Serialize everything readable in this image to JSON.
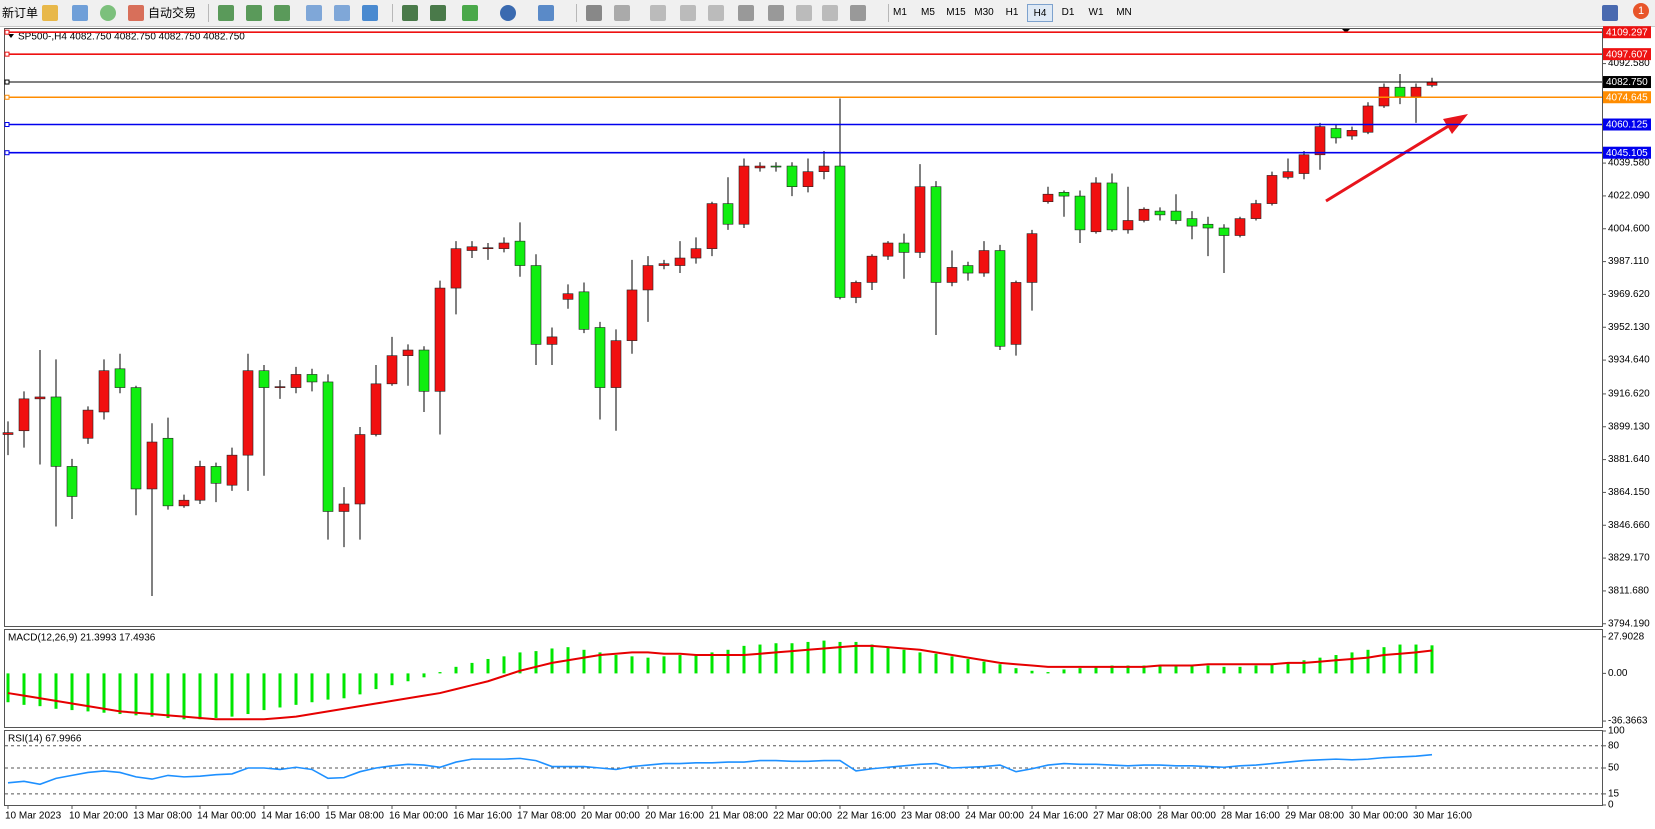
{
  "toolbar": {
    "buttons": [
      "新订单",
      "自动交易",
      "M1",
      "M5",
      "M15",
      "M30",
      "H1",
      "H4",
      "D1",
      "W1",
      "MN"
    ],
    "notification": "1"
  },
  "chart_data": [
    {
      "type": "candlestick",
      "title": "SP500-,H4  4082.750 4082.750 4082.750 4082.750",
      "categories": [
        "10 Mar 2023",
        null,
        null,
        null,
        "10 Mar 20:00",
        null,
        null,
        null,
        "13 Mar 08:00",
        null,
        null,
        null,
        "14 Mar 00:00",
        null,
        null,
        null,
        "14 Mar 16:00",
        null,
        null,
        null,
        "15 Mar 08:00",
        null,
        null,
        null,
        "16 Mar 00:00",
        null,
        null,
        null,
        "16 Mar 16:00",
        null,
        null,
        null,
        "17 Mar 08:00",
        null,
        null,
        null,
        "20 Mar 00:00",
        null,
        null,
        null,
        "20 Mar 16:00",
        null,
        null,
        null,
        "21 Mar 08:00",
        null,
        null,
        null,
        "22 Mar 00:00",
        null,
        null,
        null,
        "22 Mar 16:00",
        null,
        null,
        null,
        "23 Mar 08:00",
        null,
        null,
        null,
        "24 Mar 00:00",
        null,
        null,
        null,
        "24 Mar 16:00",
        null,
        null,
        null,
        "27 Mar 08:00",
        null,
        null,
        null,
        "28 Mar 00:00",
        null,
        null,
        null,
        "28 Mar 16:00",
        null,
        null,
        null,
        "29 Mar 08:00",
        null,
        null,
        null,
        "30 Mar 00:00",
        null,
        null,
        null,
        "30 Mar 16:00",
        null
      ],
      "open": [
        3895,
        3897,
        3914,
        3915,
        3878,
        3893,
        3907,
        3930,
        3920,
        3866,
        3893,
        3857,
        3860,
        3878,
        3868,
        3884,
        3929,
        3920,
        3920,
        3927,
        3923,
        3854,
        3858,
        3895,
        3922,
        3937,
        3940,
        3918,
        3973,
        3993,
        3994,
        3994,
        3998,
        3985,
        3943,
        3967,
        3971,
        3952,
        3920,
        3945,
        3972,
        3985,
        3985,
        3989,
        3994,
        4018,
        4007,
        4037,
        4038,
        4038,
        4027,
        4035,
        4038,
        3968,
        3976,
        3990,
        3997,
        3992,
        4027,
        3976,
        3985,
        3981,
        3993,
        3943,
        3976,
        4019,
        4024,
        4022,
        4003,
        4029,
        4004,
        4009,
        4014,
        4014,
        4010,
        4007,
        4005,
        4001,
        4010,
        4018,
        4032,
        4034,
        4044,
        4058,
        4054,
        4056,
        4070,
        4080,
        4075,
        4081
      ],
      "high": [
        3902,
        3918,
        3940,
        3935,
        3882,
        3910,
        3935,
        3938,
        3921,
        3901,
        3904,
        3863,
        3881,
        3880,
        3888,
        3938,
        3932,
        3924,
        3931,
        3930,
        3927,
        3867,
        3899,
        3932,
        3947,
        3943,
        3942,
        3977,
        3998,
        3998,
        3997,
        4000,
        4008,
        3991,
        3952,
        3975,
        3976,
        3955,
        3951,
        3988,
        3990,
        3988,
        3998,
        4000,
        4019,
        4032,
        4042,
        4040,
        4040,
        4040,
        4042,
        4046,
        4074,
        3977,
        3991,
        3998,
        4002,
        4039,
        4030,
        3993,
        3987,
        3998,
        3996,
        3977,
        4004,
        4027,
        4025,
        4025,
        4032,
        4034,
        4027,
        4016,
        4016,
        4023,
        4014,
        4011,
        4007,
        4011,
        4020,
        4035,
        4042,
        4046,
        4061,
        4060,
        4059,
        4072,
        4082,
        4087,
        4082,
        4085
      ],
      "low": [
        3884,
        3888,
        3879,
        3846,
        3850,
        3890,
        3903,
        3917,
        3852,
        3809,
        3855,
        3856,
        3858,
        3859,
        3865,
        3865,
        3873,
        3914,
        3917,
        3918,
        3839,
        3835,
        3839,
        3894,
        3921,
        3921,
        3907,
        3895,
        3959,
        3989,
        3988,
        3992,
        3979,
        3932,
        3932,
        3962,
        3949,
        3903,
        3897,
        3938,
        3955,
        3983,
        3981,
        3986,
        3990,
        4004,
        4005,
        4035,
        4035,
        4022,
        4024,
        4031,
        3967,
        3965,
        3972,
        3988,
        3978,
        3989,
        3948,
        3974,
        3977,
        3979,
        3940,
        3937,
        3961,
        4018,
        4011,
        3997,
        4002,
        4003,
        4002,
        4008,
        4009,
        4007,
        3999,
        3990,
        3981,
        4000,
        4009,
        4017,
        4031,
        4031,
        4036,
        4050,
        4052,
        4055,
        4069,
        4071,
        4061,
        4080
      ],
      "close": [
        3896,
        3914,
        3915,
        3878,
        3862,
        3908,
        3929,
        3920,
        3866,
        3891,
        3857,
        3860,
        3878,
        3869,
        3884,
        3929,
        3920,
        3920.5,
        3927,
        3923,
        3854,
        3858,
        3895,
        3922,
        3937,
        3940,
        3918,
        3973,
        3994,
        3995,
        3994.5,
        3997,
        3985,
        3943,
        3947,
        3970,
        3951,
        3920,
        3945,
        3972,
        3985,
        3986,
        3989,
        3994,
        4018,
        4007,
        4038,
        4038,
        4037.5,
        4027,
        4035,
        4038,
        3968,
        3976,
        3990,
        3997,
        3992,
        4027,
        3976,
        3984,
        3981,
        3993,
        3942,
        3976,
        4002,
        4023,
        4022,
        4004,
        4029,
        4004,
        4009,
        4015,
        4012,
        4009,
        4006,
        4005,
        4001,
        4010,
        4018,
        4033,
        4035,
        4044,
        4059,
        4053,
        4057,
        4070,
        4080,
        4075,
        4080,
        4082.75
      ],
      "up_color": "#f01010",
      "down_color": "#10ee10",
      "ylim": [
        3793,
        4111
      ],
      "yticks": [
        {
          "value": 4092.58,
          "label": "4092.580"
        },
        {
          "value": 4039.58,
          "label": "4039.580"
        },
        {
          "value": 4022.09,
          "label": "4022.090"
        },
        {
          "value": 4004.6,
          "label": "4004.600"
        },
        {
          "value": 3987.11,
          "label": "3987.110"
        },
        {
          "value": 3969.62,
          "label": "3969.620"
        },
        {
          "value": 3952.13,
          "label": "3952.130"
        },
        {
          "value": 3934.64,
          "label": "3934.640"
        },
        {
          "value": 3916.62,
          "label": "3916.620"
        },
        {
          "value": 3899.13,
          "label": "3899.130"
        },
        {
          "value": 3881.64,
          "label": "3881.640"
        },
        {
          "value": 3864.15,
          "label": "3864.150"
        },
        {
          "value": 3846.66,
          "label": "3846.660"
        },
        {
          "value": 3829.17,
          "label": "3829.170"
        },
        {
          "value": 3811.68,
          "label": "3811.680"
        },
        {
          "value": 3794.19,
          "label": "3794.190"
        }
      ],
      "hlines": [
        {
          "value": 4109.297,
          "label": "4109.297",
          "color": "#ee1111"
        },
        {
          "value": 4097.607,
          "label": "4097.607",
          "color": "#ee1111"
        },
        {
          "value": 4082.75,
          "label": "4082.750",
          "color": "#000000"
        },
        {
          "value": 4074.645,
          "label": "4074.645",
          "color": "#ff8c00"
        },
        {
          "value": 4060.125,
          "label": "4060.125",
          "color": "#0000ee"
        },
        {
          "value": 4045.105,
          "label": "4045.105",
          "color": "#0000ee"
        }
      ]
    },
    {
      "type": "macd",
      "title": "MACD(12,26,9) 21.3993 17.4936",
      "series": [
        {
          "color": "#00e600",
          "values": [
            -22,
            -24,
            -25,
            -27,
            -28,
            -29,
            -30,
            -31,
            -32,
            -33,
            -34,
            -35,
            -35,
            -34,
            -33,
            -31,
            -28,
            -26,
            -24,
            -22,
            -20,
            -19,
            -16,
            -12,
            -9,
            -6,
            -3,
            1,
            5,
            8,
            11,
            13,
            16,
            17,
            19,
            20,
            18,
            16,
            14,
            13,
            12,
            13,
            14,
            14,
            16,
            18,
            21,
            22,
            23,
            23,
            24,
            25,
            24,
            24,
            22,
            20,
            18,
            16,
            15,
            13,
            11,
            9,
            7,
            4,
            2,
            1,
            3,
            4,
            5,
            6,
            6,
            6,
            6,
            6,
            6,
            6,
            5,
            5,
            6,
            7,
            8,
            10,
            12,
            14,
            16,
            18,
            20,
            22,
            22,
            21.3993
          ]
        },
        {
          "color": "#e60000",
          "values": [
            -15,
            -17,
            -19,
            -21,
            -23,
            -25,
            -27,
            -29,
            -30,
            -31,
            -32,
            -33,
            -34,
            -35,
            -35,
            -35,
            -35,
            -34,
            -33,
            -31,
            -29,
            -27,
            -25,
            -23,
            -21,
            -19,
            -17,
            -15,
            -12,
            -9,
            -6,
            -2,
            2,
            5,
            8,
            10,
            12,
            14,
            15,
            16,
            16,
            15,
            15,
            14,
            14,
            14,
            14,
            15,
            16,
            17,
            18,
            19,
            20,
            21,
            21,
            20,
            19,
            18,
            16,
            14,
            12,
            10,
            8,
            7,
            6,
            5,
            5,
            5,
            5,
            5,
            5,
            5,
            6,
            6,
            6,
            7,
            7,
            7,
            7,
            7,
            8,
            8,
            9,
            10,
            11,
            12,
            14,
            15,
            16,
            17.4936
          ]
        }
      ],
      "ylim": [
        -40.9,
        33.1
      ],
      "yticks": [
        27.9028,
        {
          "value": 0,
          "label": "0.00"
        },
        -36.3663
      ]
    },
    {
      "type": "line",
      "title": "RSI(14) 67.9966",
      "series": [
        {
          "color": "#1e90ff",
          "values": [
            30,
            32,
            28,
            36,
            40,
            44,
            46,
            44,
            38,
            35,
            40,
            38,
            39,
            41,
            42,
            50,
            50,
            48,
            51,
            48,
            36,
            37,
            45,
            50,
            53,
            55,
            54,
            51,
            58,
            62,
            62,
            62,
            63,
            60,
            52,
            52,
            52,
            50,
            48,
            52,
            54,
            56,
            56,
            57,
            57,
            58,
            58,
            60,
            60,
            59,
            59,
            60,
            60,
            46,
            49,
            51,
            53,
            55,
            56,
            50,
            51,
            52,
            54,
            45,
            49,
            54,
            56,
            55,
            55,
            54,
            53,
            54,
            54,
            53,
            53,
            52,
            51,
            53,
            54,
            56,
            58,
            60,
            61,
            62,
            61,
            62,
            64,
            65,
            66,
            67.9966
          ]
        }
      ],
      "ylim": [
        0,
        100
      ],
      "yticks": [
        100,
        80,
        50,
        15,
        0
      ]
    }
  ]
}
